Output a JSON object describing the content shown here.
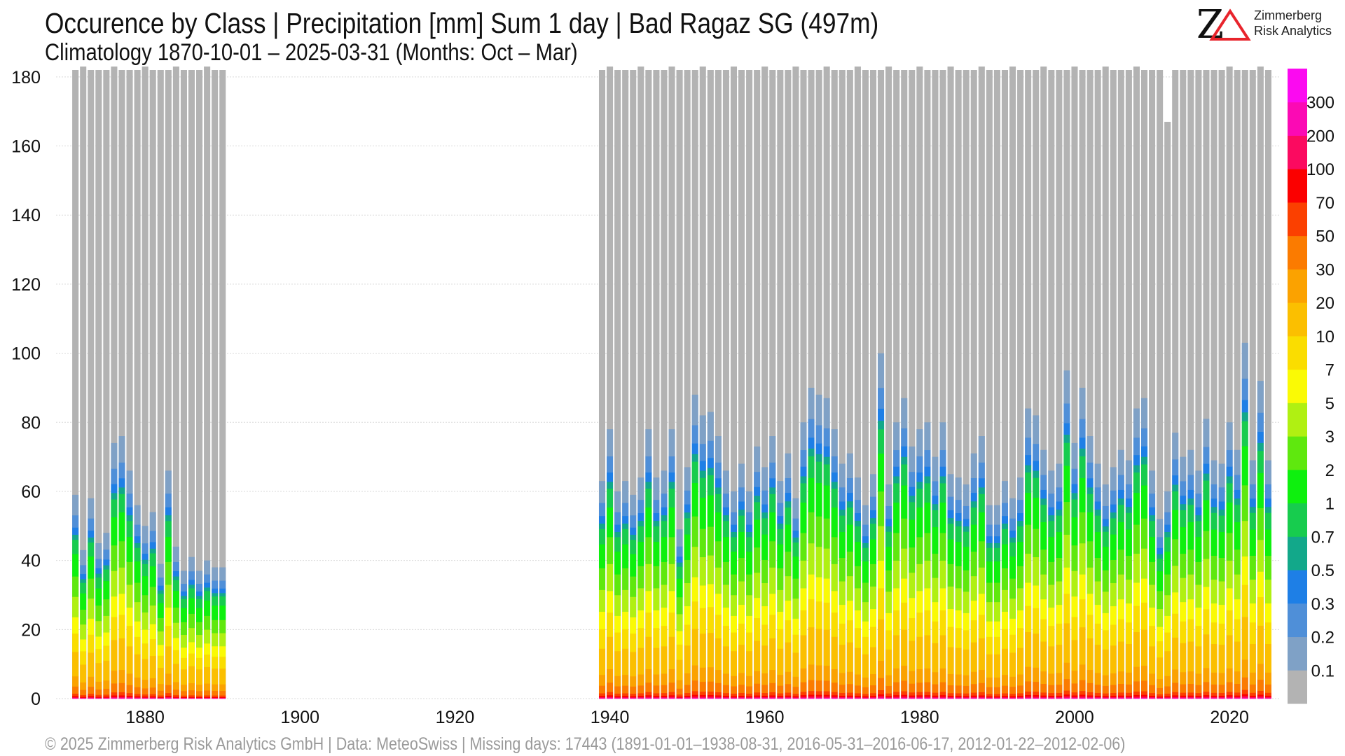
{
  "header": {
    "title": "Occurence by Class | Precipitation [mm] Sum 1 day | Bad Ragaz  SG (497m)",
    "subtitle": "Climatology 1870-10-01 – 2025-03-31 (Months: Oct – Mar)"
  },
  "logo": {
    "line1": "Zimmerberg",
    "line2": "Risk Analytics",
    "accent": "#e8242c"
  },
  "footer": "©  2025 Zimmerberg Risk Analytics GmbH | Data: MeteoSwiss | Missing days: 17443 (1891-01-01–1938-08-31, 2016-05-31–2016-06-17, 2012-01-22–2012-02-06)",
  "chart_data": {
    "type": "bar",
    "stacked": true,
    "x_range": [
      1868.5,
      2026.5
    ],
    "ylim": [
      0,
      182
    ],
    "yticks": [
      0,
      20,
      40,
      60,
      80,
      100,
      120,
      140,
      160,
      180
    ],
    "xticks": [
      1880,
      1900,
      1920,
      1940,
      1960,
      1980,
      2000,
      2020
    ],
    "grid": "horizontal",
    "legend_position": "right",
    "class_thresholds": [
      "0.1",
      "0.2",
      "0.3",
      "0.5",
      "0.7",
      "1",
      "2",
      "3",
      "5",
      "7",
      "10",
      "20",
      "30",
      "50",
      "70",
      "100",
      "200",
      "300"
    ],
    "class_colors": [
      "#b3b3b3",
      "#7fa1c6",
      "#4f8fd8",
      "#1e7fe6",
      "#12a88a",
      "#17cc4e",
      "#0ef00e",
      "#5fe80e",
      "#b0f012",
      "#fafa05",
      "#fadd00",
      "#fbbf00",
      "#fba200",
      "#fb7b00",
      "#fb4000",
      "#fb0000",
      "#fb0a60",
      "#fb0ab4",
      "#fb0af0"
    ],
    "dry_color": "#b3b3b3",
    "gap_years": [
      1891,
      1938
    ],
    "bars": [
      {
        "x": 1871,
        "total": 182,
        "wet": 59
      },
      {
        "x": 1872,
        "total": 183,
        "wet": 43
      },
      {
        "x": 1873,
        "total": 182,
        "wet": 58
      },
      {
        "x": 1874,
        "total": 182,
        "wet": 45
      },
      {
        "x": 1875,
        "total": 182,
        "wet": 48
      },
      {
        "x": 1876,
        "total": 183,
        "wet": 74
      },
      {
        "x": 1877,
        "total": 182,
        "wet": 76
      },
      {
        "x": 1878,
        "total": 182,
        "wet": 66
      },
      {
        "x": 1879,
        "total": 182,
        "wet": 56
      },
      {
        "x": 1880,
        "total": 183,
        "wet": 50
      },
      {
        "x": 1881,
        "total": 182,
        "wet": 54
      },
      {
        "x": 1882,
        "total": 182,
        "wet": 39
      },
      {
        "x": 1883,
        "total": 182,
        "wet": 66
      },
      {
        "x": 1884,
        "total": 183,
        "wet": 44
      },
      {
        "x": 1885,
        "total": 182,
        "wet": 37
      },
      {
        "x": 1886,
        "total": 182,
        "wet": 41
      },
      {
        "x": 1887,
        "total": 182,
        "wet": 37
      },
      {
        "x": 1888,
        "total": 183,
        "wet": 40
      },
      {
        "x": 1889,
        "total": 182,
        "wet": 38
      },
      {
        "x": 1890,
        "total": 182,
        "wet": 38
      },
      {
        "x": 1939,
        "total": 182,
        "wet": 63
      },
      {
        "x": 1940,
        "total": 183,
        "wet": 78
      },
      {
        "x": 1941,
        "total": 182,
        "wet": 60
      },
      {
        "x": 1942,
        "total": 182,
        "wet": 63
      },
      {
        "x": 1943,
        "total": 182,
        "wet": 59
      },
      {
        "x": 1944,
        "total": 183,
        "wet": 64
      },
      {
        "x": 1945,
        "total": 182,
        "wet": 78
      },
      {
        "x": 1946,
        "total": 182,
        "wet": 64
      },
      {
        "x": 1947,
        "total": 182,
        "wet": 66
      },
      {
        "x": 1948,
        "total": 183,
        "wet": 78
      },
      {
        "x": 1949,
        "total": 182,
        "wet": 49
      },
      {
        "x": 1950,
        "total": 182,
        "wet": 67
      },
      {
        "x": 1951,
        "total": 182,
        "wet": 88
      },
      {
        "x": 1952,
        "total": 183,
        "wet": 82
      },
      {
        "x": 1953,
        "total": 182,
        "wet": 83
      },
      {
        "x": 1954,
        "total": 182,
        "wet": 76
      },
      {
        "x": 1955,
        "total": 182,
        "wet": 66
      },
      {
        "x": 1956,
        "total": 183,
        "wet": 60
      },
      {
        "x": 1957,
        "total": 182,
        "wet": 68
      },
      {
        "x": 1958,
        "total": 182,
        "wet": 60
      },
      {
        "x": 1959,
        "total": 182,
        "wet": 73
      },
      {
        "x": 1960,
        "total": 183,
        "wet": 67
      },
      {
        "x": 1961,
        "total": 182,
        "wet": 76
      },
      {
        "x": 1962,
        "total": 182,
        "wet": 63
      },
      {
        "x": 1963,
        "total": 182,
        "wet": 71
      },
      {
        "x": 1964,
        "total": 183,
        "wet": 58
      },
      {
        "x": 1965,
        "total": 182,
        "wet": 80
      },
      {
        "x": 1966,
        "total": 182,
        "wet": 90
      },
      {
        "x": 1967,
        "total": 182,
        "wet": 88
      },
      {
        "x": 1968,
        "total": 183,
        "wet": 87
      },
      {
        "x": 1969,
        "total": 182,
        "wet": 78
      },
      {
        "x": 1970,
        "total": 182,
        "wet": 68
      },
      {
        "x": 1971,
        "total": 182,
        "wet": 71
      },
      {
        "x": 1972,
        "total": 183,
        "wet": 64
      },
      {
        "x": 1973,
        "total": 182,
        "wet": 56
      },
      {
        "x": 1974,
        "total": 182,
        "wet": 65
      },
      {
        "x": 1975,
        "total": 182,
        "wet": 100
      },
      {
        "x": 1976,
        "total": 183,
        "wet": 62
      },
      {
        "x": 1977,
        "total": 182,
        "wet": 80
      },
      {
        "x": 1978,
        "total": 182,
        "wet": 87
      },
      {
        "x": 1979,
        "total": 182,
        "wet": 73
      },
      {
        "x": 1980,
        "total": 183,
        "wet": 78
      },
      {
        "x": 1981,
        "total": 182,
        "wet": 80
      },
      {
        "x": 1982,
        "total": 182,
        "wet": 70
      },
      {
        "x": 1983,
        "total": 182,
        "wet": 80
      },
      {
        "x": 1984,
        "total": 183,
        "wet": 65
      },
      {
        "x": 1985,
        "total": 182,
        "wet": 64
      },
      {
        "x": 1986,
        "total": 182,
        "wet": 62
      },
      {
        "x": 1987,
        "total": 182,
        "wet": 71
      },
      {
        "x": 1988,
        "total": 183,
        "wet": 76
      },
      {
        "x": 1989,
        "total": 182,
        "wet": 56
      },
      {
        "x": 1990,
        "total": 182,
        "wet": 56
      },
      {
        "x": 1991,
        "total": 182,
        "wet": 63
      },
      {
        "x": 1992,
        "total": 183,
        "wet": 58
      },
      {
        "x": 1993,
        "total": 182,
        "wet": 64
      },
      {
        "x": 1994,
        "total": 182,
        "wet": 84
      },
      {
        "x": 1995,
        "total": 182,
        "wet": 82
      },
      {
        "x": 1996,
        "total": 183,
        "wet": 72
      },
      {
        "x": 1997,
        "total": 182,
        "wet": 66
      },
      {
        "x": 1998,
        "total": 182,
        "wet": 68
      },
      {
        "x": 1999,
        "total": 182,
        "wet": 95
      },
      {
        "x": 2000,
        "total": 183,
        "wet": 74
      },
      {
        "x": 2001,
        "total": 182,
        "wet": 90
      },
      {
        "x": 2002,
        "total": 182,
        "wet": 76
      },
      {
        "x": 2003,
        "total": 182,
        "wet": 68
      },
      {
        "x": 2004,
        "total": 183,
        "wet": 62
      },
      {
        "x": 2005,
        "total": 182,
        "wet": 67
      },
      {
        "x": 2006,
        "total": 182,
        "wet": 72
      },
      {
        "x": 2007,
        "total": 182,
        "wet": 69
      },
      {
        "x": 2008,
        "total": 183,
        "wet": 84
      },
      {
        "x": 2009,
        "total": 182,
        "wet": 87
      },
      {
        "x": 2010,
        "total": 182,
        "wet": 66
      },
      {
        "x": 2011,
        "total": 182,
        "wet": 52
      },
      {
        "x": 2012,
        "total": 167,
        "wet": 60
      },
      {
        "x": 2013,
        "total": 182,
        "wet": 77
      },
      {
        "x": 2014,
        "total": 182,
        "wet": 70
      },
      {
        "x": 2015,
        "total": 182,
        "wet": 72
      },
      {
        "x": 2016,
        "total": 182,
        "wet": 66
      },
      {
        "x": 2017,
        "total": 182,
        "wet": 81
      },
      {
        "x": 2018,
        "total": 182,
        "wet": 69
      },
      {
        "x": 2019,
        "total": 182,
        "wet": 68
      },
      {
        "x": 2020,
        "total": 183,
        "wet": 80
      },
      {
        "x": 2021,
        "total": 182,
        "wet": 72
      },
      {
        "x": 2022,
        "total": 182,
        "wet": 103
      },
      {
        "x": 2023,
        "total": 182,
        "wet": 69
      },
      {
        "x": 2024,
        "total": 183,
        "wet": 92
      },
      {
        "x": 2025,
        "total": 182,
        "wet": 69
      }
    ]
  }
}
